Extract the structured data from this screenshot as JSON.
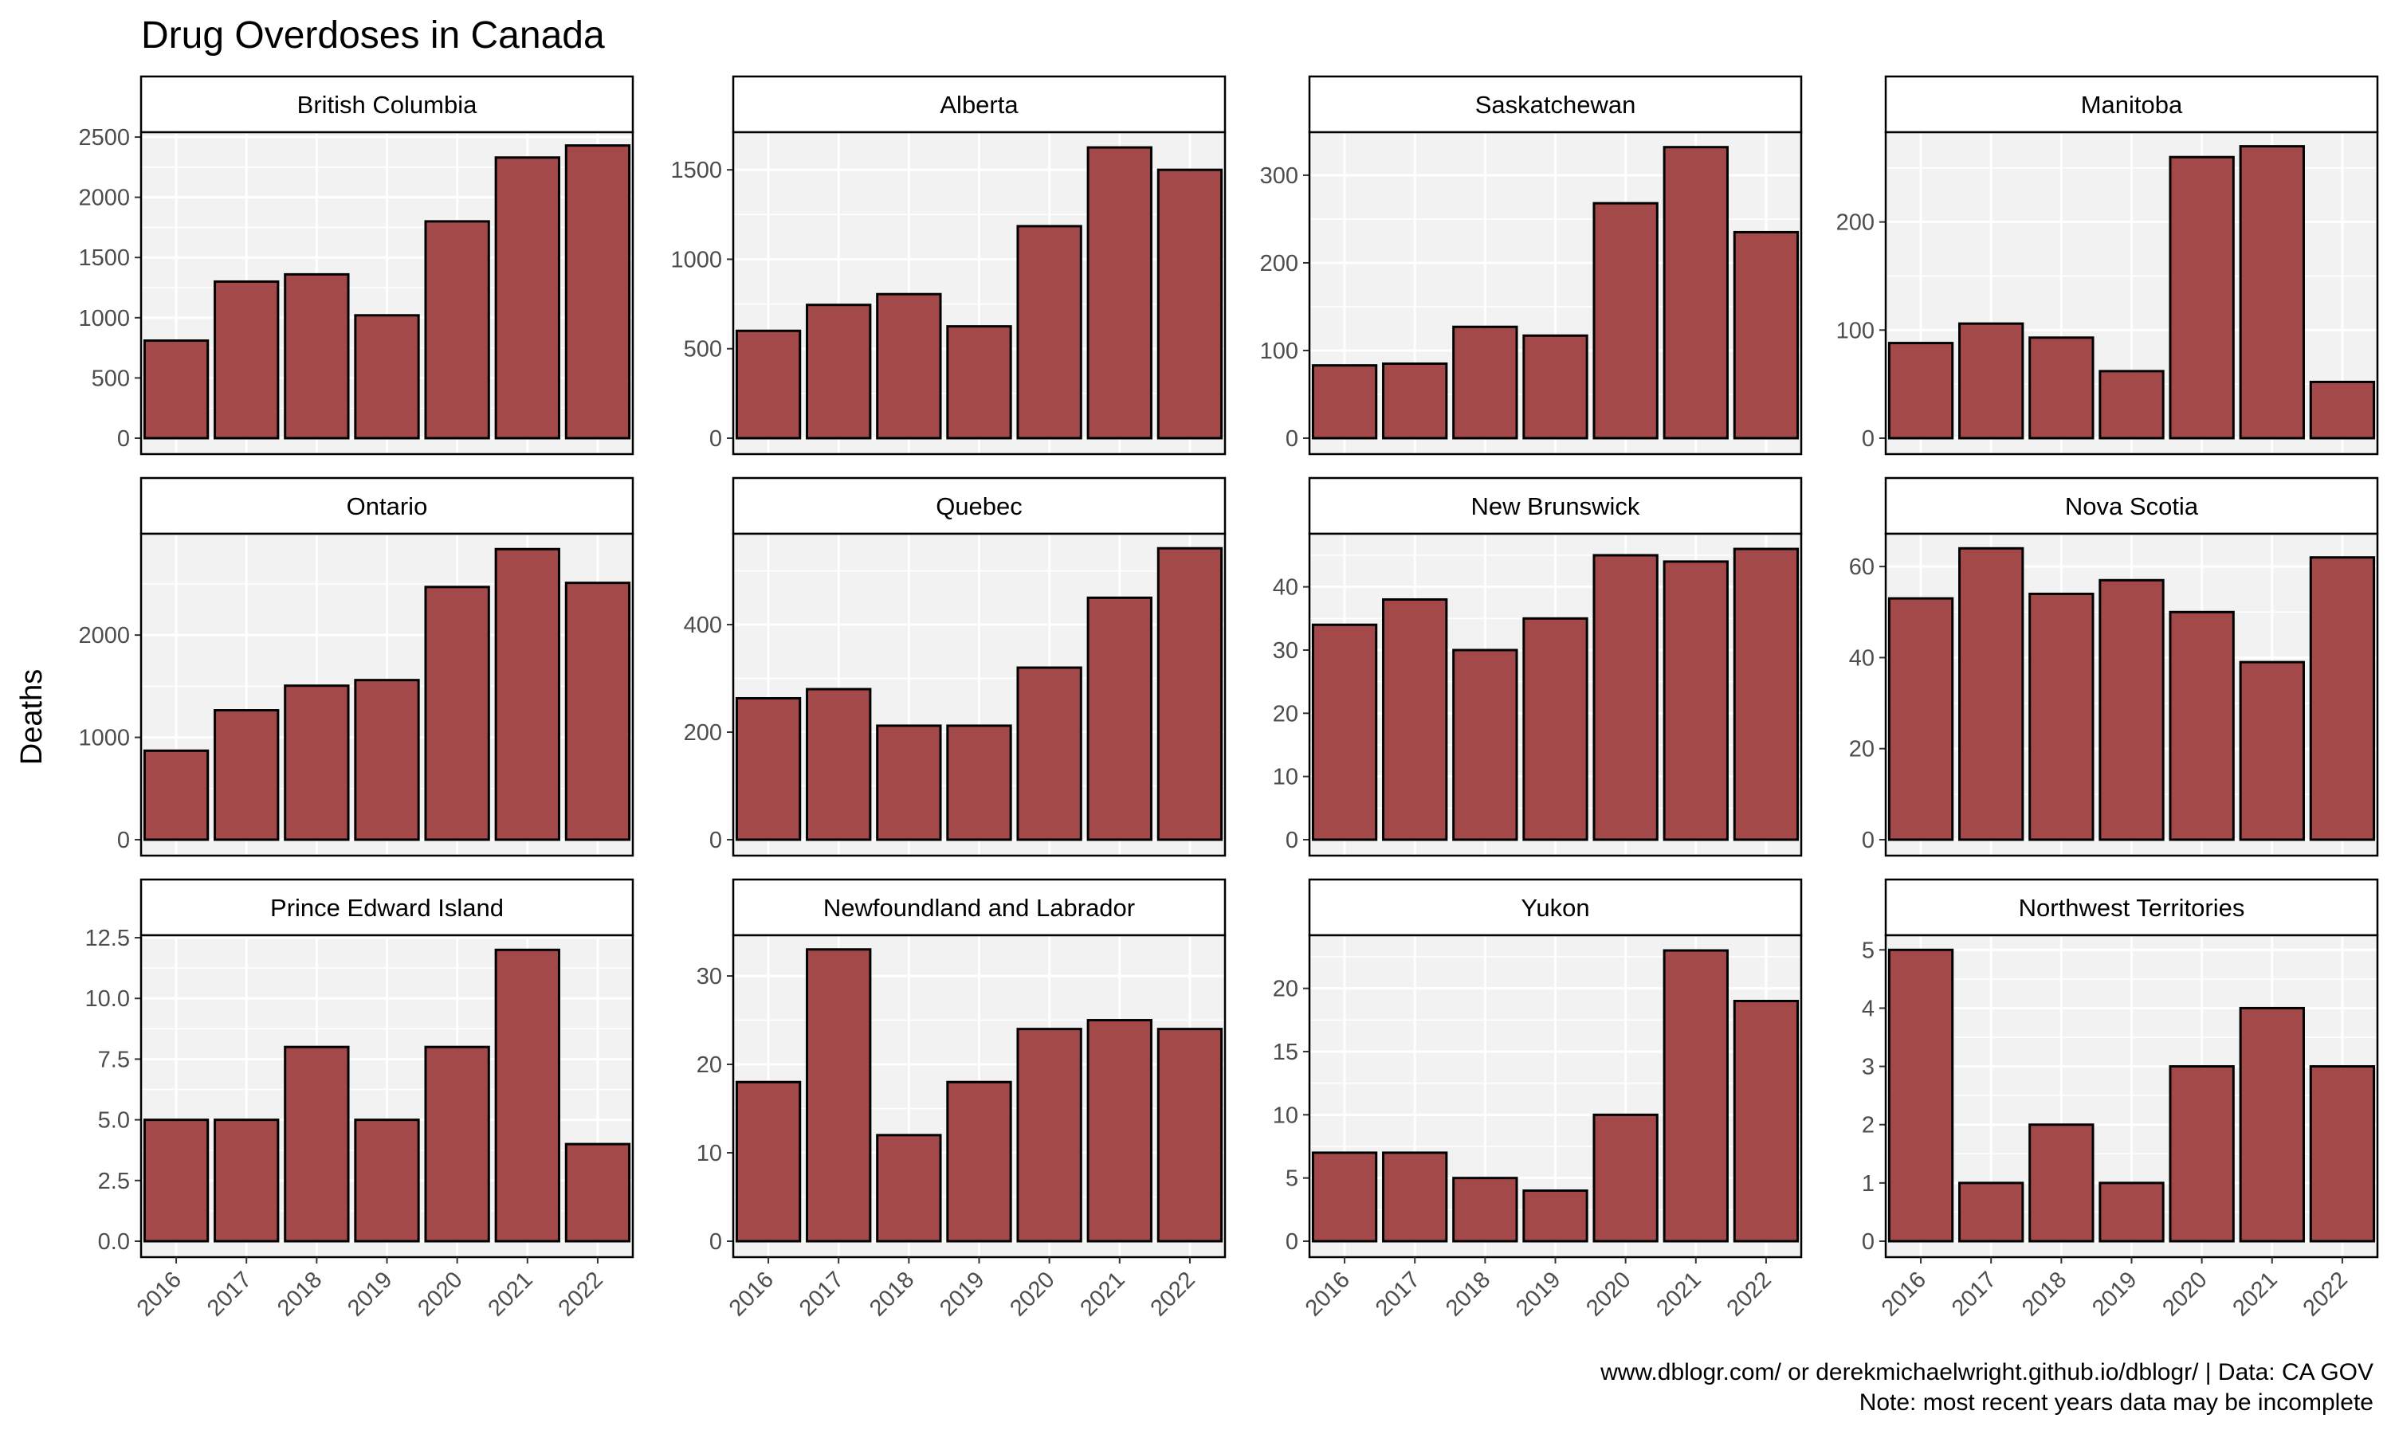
{
  "title": "Drug Overdoses in Canada",
  "ylabel": "Deaths",
  "caption": [
    "www.dblogr.com/ or derekmichaelwright.github.io/dblogr/ | Data: CA GOV",
    "Note: most recent years data may be incomplete"
  ],
  "colors": {
    "bar_fill": "#A4494A",
    "bar_stroke": "#000000",
    "panel_bg": "#F2F2F2",
    "grid": "#FFFFFF",
    "text": "#000000",
    "tick_text": "#4D4D4D"
  },
  "chart_data": {
    "type": "bar",
    "layout": "facet-grid 3x4",
    "categories": [
      "2016",
      "2017",
      "2018",
      "2019",
      "2020",
      "2021",
      "2022"
    ],
    "grid": true,
    "panels": [
      {
        "name": "British Columbia",
        "values": [
          810,
          1300,
          1360,
          1020,
          1800,
          2330,
          2430
        ],
        "ylim": [
          0,
          2540
        ],
        "ticks": [
          0,
          500,
          1000,
          1500,
          2000,
          2500
        ],
        "tick_labels": [
          "0",
          "500",
          "1000",
          "1500",
          "2000",
          "2500"
        ]
      },
      {
        "name": "Alberta",
        "values": [
          600,
          745,
          805,
          625,
          1185,
          1625,
          1500
        ],
        "ylim": [
          0,
          1710
        ],
        "ticks": [
          0,
          500,
          1000,
          1500
        ],
        "tick_labels": [
          "0",
          "500",
          "1000",
          "1500"
        ]
      },
      {
        "name": "Saskatchewan",
        "values": [
          83,
          85,
          127,
          117,
          268,
          332,
          235
        ],
        "ylim": [
          0,
          349
        ],
        "ticks": [
          0,
          100,
          200,
          300
        ],
        "tick_labels": [
          "0",
          "100",
          "200",
          "300"
        ]
      },
      {
        "name": "Manitoba",
        "values": [
          88,
          106,
          93,
          62,
          260,
          270,
          52
        ],
        "ylim": [
          0,
          283
        ],
        "ticks": [
          0,
          100,
          200
        ],
        "tick_labels": [
          "0",
          "100",
          "200"
        ]
      },
      {
        "name": "Ontario",
        "values": [
          870,
          1265,
          1505,
          1560,
          2470,
          2840,
          2510
        ],
        "ylim": [
          0,
          2990
        ],
        "ticks": [
          0,
          1000,
          2000
        ],
        "tick_labels": [
          "0",
          "1000",
          "2000"
        ]
      },
      {
        "name": "Quebec",
        "values": [
          263,
          280,
          212,
          212,
          320,
          450,
          542
        ],
        "ylim": [
          0,
          569
        ],
        "ticks": [
          0,
          200,
          400
        ],
        "tick_labels": [
          "0",
          "200",
          "400"
        ]
      },
      {
        "name": "New Brunswick",
        "values": [
          34,
          38,
          30,
          35,
          45,
          44,
          46
        ],
        "ylim": [
          0,
          48.4
        ],
        "ticks": [
          0,
          10,
          20,
          30,
          40
        ],
        "tick_labels": [
          "0",
          "10",
          "20",
          "30",
          "40"
        ]
      },
      {
        "name": "Nova Scotia",
        "values": [
          53,
          64,
          54,
          57,
          50,
          39,
          62
        ],
        "ylim": [
          0,
          67.2
        ],
        "ticks": [
          0,
          20,
          40,
          60
        ],
        "tick_labels": [
          "0",
          "20",
          "40",
          "60"
        ]
      },
      {
        "name": "Prince Edward Island",
        "values": [
          5,
          5,
          8,
          5,
          8,
          12,
          4
        ],
        "ylim": [
          0,
          12.6
        ],
        "ticks": [
          0,
          2.5,
          5,
          7.5,
          10,
          12.5
        ],
        "tick_labels": [
          "0.0",
          "2.5",
          "5.0",
          "7.5",
          "10.0",
          "12.5"
        ]
      },
      {
        "name": "Newfoundland and Labrador",
        "values": [
          18,
          33,
          12,
          18,
          24,
          25,
          24
        ],
        "ylim": [
          0,
          34.6
        ],
        "ticks": [
          0,
          10,
          20,
          30
        ],
        "tick_labels": [
          "0",
          "10",
          "20",
          "30"
        ]
      },
      {
        "name": "Yukon",
        "values": [
          7,
          7,
          5,
          4,
          10,
          23,
          19
        ],
        "ylim": [
          0,
          24.2
        ],
        "ticks": [
          0,
          5,
          10,
          15,
          20
        ],
        "tick_labels": [
          "0",
          "5",
          "10",
          "15",
          "20"
        ]
      },
      {
        "name": "Northwest Territories",
        "values": [
          5,
          1,
          2,
          1,
          3,
          4,
          3
        ],
        "ylim": [
          0,
          5.25
        ],
        "ticks": [
          0,
          1,
          2,
          3,
          4,
          5
        ],
        "tick_labels": [
          "0",
          "1",
          "2",
          "3",
          "4",
          "5"
        ]
      }
    ]
  }
}
